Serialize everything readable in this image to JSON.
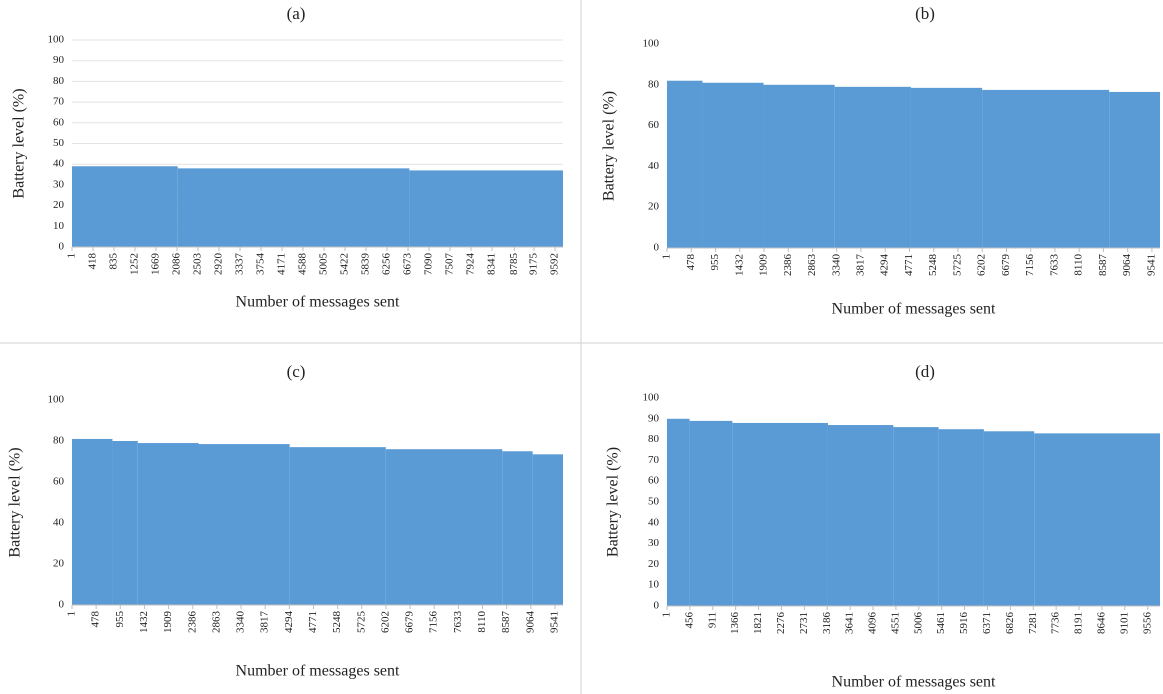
{
  "chart_data": [
    {
      "type": "step-area",
      "title": "(a)",
      "x_label": "Number of messages sent",
      "y_label": "Battery level (%)",
      "color": "#5b9bd5",
      "grid": true,
      "x": [
        1,
        2100,
        6700
      ],
      "values": [
        39,
        38,
        37
      ],
      "xlim": [
        1,
        9750
      ],
      "xticks": [
        1,
        418,
        835,
        1252,
        1669,
        2086,
        2503,
        2920,
        3337,
        3754,
        4171,
        4588,
        5005,
        5422,
        5839,
        6256,
        6673,
        7090,
        7507,
        7924,
        8341,
        8785,
        9175,
        9592
      ],
      "ylim": [
        0,
        100
      ],
      "yticks": [
        0,
        10,
        20,
        30,
        40,
        50,
        60,
        70,
        80,
        90,
        100
      ]
    },
    {
      "type": "step-area",
      "title": "(b)",
      "x_label": "Number of messages sent",
      "y_label": "Battery level (%)",
      "color": "#5b9bd5",
      "grid": false,
      "x": [
        1,
        700,
        1900,
        3300,
        4800,
        6200,
        8700
      ],
      "values": [
        82,
        81,
        80,
        79,
        78.5,
        77.5,
        76.5
      ],
      "xlim": [
        1,
        9700
      ],
      "xticks": [
        1,
        478,
        955,
        1432,
        1909,
        2386,
        2863,
        3340,
        3817,
        4294,
        4771,
        5248,
        5725,
        6202,
        6679,
        7156,
        7633,
        8110,
        8587,
        9064,
        9541
      ],
      "ylim": [
        0,
        100
      ],
      "yticks": [
        0,
        20,
        40,
        60,
        80,
        100
      ]
    },
    {
      "type": "step-area",
      "title": "(c)",
      "x_label": "Number of messages sent",
      "y_label": "Battery level (%)",
      "color": "#5b9bd5",
      "grid": false,
      "x": [
        1,
        800,
        1300,
        2500,
        4300,
        6200,
        8500,
        9100
      ],
      "values": [
        81,
        80,
        79,
        78.5,
        77,
        76,
        75,
        73.5
      ],
      "xlim": [
        1,
        9700
      ],
      "xticks": [
        1,
        478,
        955,
        1432,
        1909,
        2386,
        2863,
        3340,
        3817,
        4294,
        4771,
        5248,
        5725,
        6202,
        6679,
        7156,
        7633,
        8110,
        8587,
        9064,
        9541
      ],
      "ylim": [
        0,
        100
      ],
      "yticks": [
        0,
        20,
        40,
        60,
        80,
        100
      ]
    },
    {
      "type": "step-area",
      "title": "(d)",
      "x_label": "Number of messages sent",
      "y_label": "Battery level (%)",
      "color": "#5b9bd5",
      "grid": false,
      "x": [
        1,
        450,
        1300,
        3200,
        4500,
        5400,
        6300,
        7300
      ],
      "values": [
        90,
        89,
        88,
        87,
        86,
        85,
        84,
        83
      ],
      "xlim": [
        1,
        9800
      ],
      "xticks": [
        1,
        456,
        911,
        1366,
        1821,
        2276,
        2731,
        3186,
        3641,
        4096,
        4551,
        5006,
        5461,
        5916,
        6371,
        6826,
        7281,
        7736,
        8191,
        8646,
        9101,
        9556
      ],
      "ylim": [
        0,
        100
      ],
      "yticks": [
        0,
        10,
        20,
        30,
        40,
        50,
        60,
        70,
        80,
        90,
        100
      ]
    }
  ]
}
